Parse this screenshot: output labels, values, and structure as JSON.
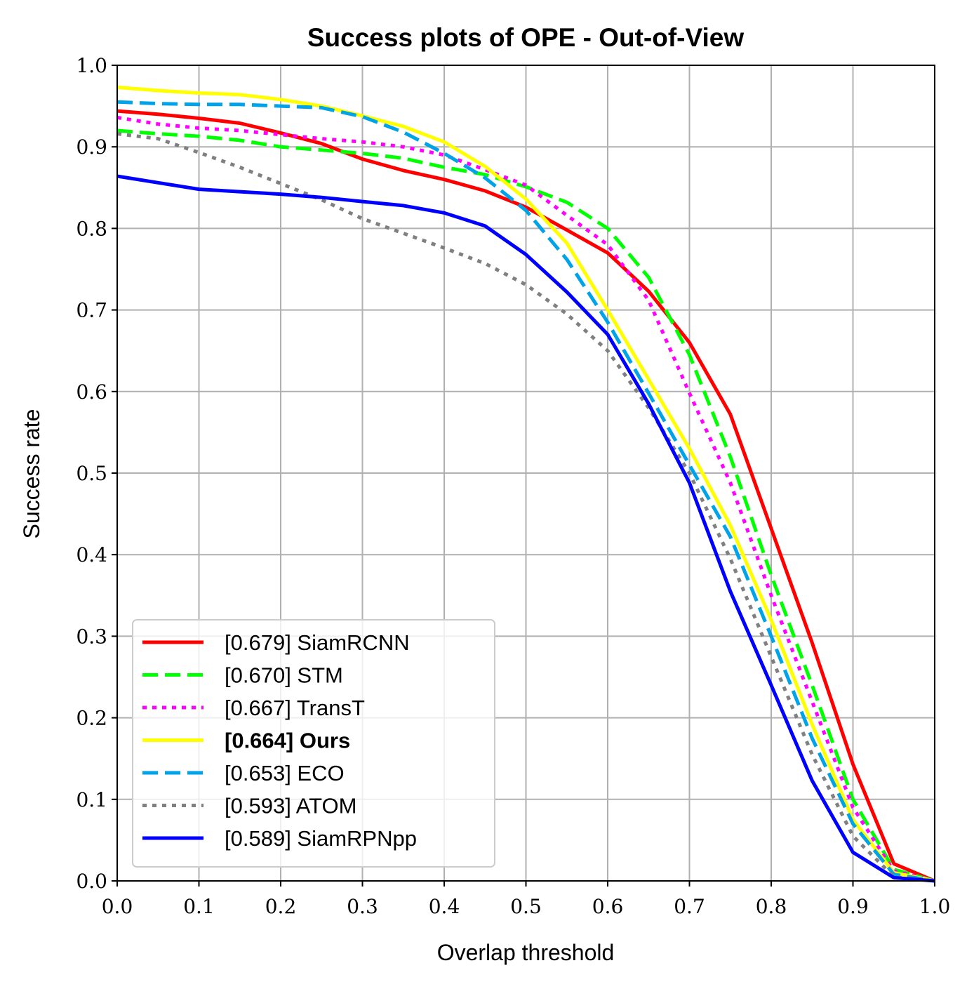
{
  "chart_data": {
    "type": "line",
    "title": "Success plots of OPE - Out-of-View",
    "xlabel": "Overlap threshold",
    "ylabel": "Success rate",
    "xlim": [
      0.0,
      1.0
    ],
    "ylim": [
      0.0,
      1.0
    ],
    "x_ticks": [
      "0.0",
      "0.1",
      "0.2",
      "0.3",
      "0.4",
      "0.5",
      "0.6",
      "0.7",
      "0.8",
      "0.9",
      "1.0"
    ],
    "y_ticks": [
      "0.0",
      "0.1",
      "0.2",
      "0.3",
      "0.4",
      "0.5",
      "0.6",
      "0.7",
      "0.8",
      "0.9",
      "1.0"
    ],
    "grid": true,
    "legend_position": "lower-left",
    "x": [
      0.0,
      0.05,
      0.1,
      0.15,
      0.2,
      0.25,
      0.3,
      0.35,
      0.4,
      0.45,
      0.5,
      0.55,
      0.6,
      0.65,
      0.7,
      0.75,
      0.8,
      0.85,
      0.9,
      0.95,
      1.0
    ],
    "series": [
      {
        "name": "[0.679] SiamRCNN",
        "color": "#ff0000",
        "dash": "solid",
        "bold": false,
        "values": [
          0.944,
          0.94,
          0.935,
          0.929,
          0.917,
          0.904,
          0.885,
          0.871,
          0.86,
          0.846,
          0.826,
          0.798,
          0.77,
          0.723,
          0.66,
          0.572,
          0.432,
          0.292,
          0.143,
          0.021,
          0.0
        ]
      },
      {
        "name": "[0.670] STM",
        "color": "#00ff00",
        "dash": "dashed",
        "bold": false,
        "values": [
          0.92,
          0.916,
          0.913,
          0.908,
          0.9,
          0.896,
          0.892,
          0.886,
          0.875,
          0.866,
          0.851,
          0.832,
          0.8,
          0.74,
          0.645,
          0.52,
          0.375,
          0.24,
          0.1,
          0.014,
          0.0
        ]
      },
      {
        "name": "[0.667] TransT",
        "color": "#ff00ff",
        "dash": "dotted",
        "bold": false,
        "values": [
          0.936,
          0.928,
          0.923,
          0.92,
          0.915,
          0.91,
          0.906,
          0.9,
          0.89,
          0.872,
          0.853,
          0.816,
          0.78,
          0.712,
          0.598,
          0.488,
          0.35,
          0.22,
          0.09,
          0.012,
          0.0
        ]
      },
      {
        "name": "[0.664] Ours",
        "color": "#ffff00",
        "dash": "solid",
        "bold": true,
        "values": [
          0.973,
          0.969,
          0.966,
          0.964,
          0.958,
          0.95,
          0.938,
          0.925,
          0.906,
          0.876,
          0.836,
          0.782,
          0.7,
          0.615,
          0.53,
          0.436,
          0.32,
          0.192,
          0.075,
          0.01,
          0.0
        ]
      },
      {
        "name": "[0.653] ECO",
        "color": "#00a2e8",
        "dash": "dashed",
        "bold": false,
        "values": [
          0.955,
          0.953,
          0.952,
          0.952,
          0.95,
          0.948,
          0.937,
          0.918,
          0.892,
          0.862,
          0.822,
          0.762,
          0.685,
          0.598,
          0.51,
          0.422,
          0.3,
          0.175,
          0.07,
          0.008,
          0.0
        ]
      },
      {
        "name": "[0.593] ATOM",
        "color": "#808080",
        "dash": "dotted",
        "bold": false,
        "values": [
          0.916,
          0.91,
          0.893,
          0.875,
          0.855,
          0.835,
          0.812,
          0.794,
          0.776,
          0.757,
          0.731,
          0.695,
          0.65,
          0.58,
          0.5,
          0.395,
          0.275,
          0.155,
          0.055,
          0.005,
          0.0
        ]
      },
      {
        "name": "[0.589] SiamRPNpp",
        "color": "#0000ff",
        "dash": "solid",
        "bold": false,
        "values": [
          0.864,
          0.856,
          0.848,
          0.845,
          0.842,
          0.838,
          0.833,
          0.828,
          0.819,
          0.803,
          0.768,
          0.722,
          0.67,
          0.585,
          0.488,
          0.355,
          0.24,
          0.123,
          0.035,
          0.004,
          0.0
        ]
      }
    ]
  }
}
